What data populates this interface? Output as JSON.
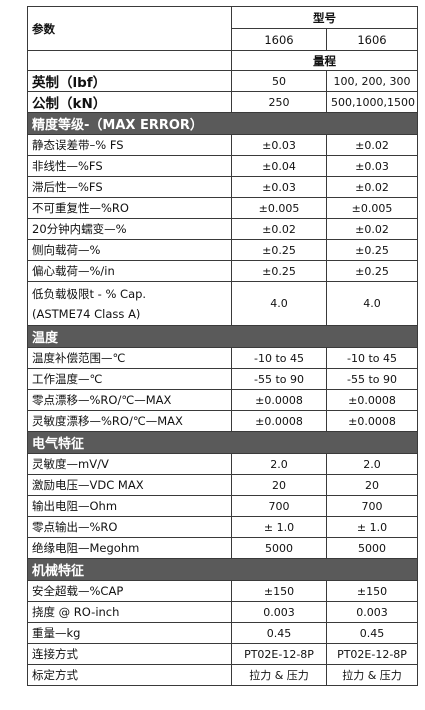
{
  "header": {
    "param_label": "参数",
    "model_label": "型号",
    "model_a": "1606",
    "model_b": "1606",
    "range_label": "量程"
  },
  "capacity": [
    {
      "label": "英制（lbf）",
      "a": "50",
      "b": "100, 200, 300"
    },
    {
      "label": "公制（kN）",
      "a": "250",
      "b": "500,1000,1500"
    }
  ],
  "sections": {
    "accuracy": "精度等级-（MAX ERROR）",
    "temperature": "温度",
    "electrical": "电气特征",
    "mechanical": "机械特征"
  },
  "accuracy_rows": [
    {
      "label": "静态误差带–% FS",
      "a": "±0.03",
      "b": "±0.02"
    },
    {
      "label": "非线性—%FS",
      "a": "±0.04",
      "b": "±0.03"
    },
    {
      "label": "滞后性—%FS",
      "a": "±0.03",
      "b": "±0.02"
    },
    {
      "label": "不可重复性—%RO",
      "a": "±0.005",
      "b": "±0.005"
    },
    {
      "label": "20分钟内蠕变—%",
      "a": "±0.02",
      "b": "±0.02"
    },
    {
      "label": "侧向载荷—%",
      "a": "±0.25",
      "b": "±0.25"
    },
    {
      "label": "偏心载荷—%/in",
      "a": "±0.25",
      "b": "±0.25"
    }
  ],
  "low_load": {
    "label_line1": "低负载极限t - % Cap.",
    "label_line2": "(ASTME74 Class A)",
    "a": "4.0",
    "b": "4.0"
  },
  "temperature_rows": [
    {
      "label": "温度补偿范围—℃",
      "a": "-10 to 45",
      "b": "-10 to 45"
    },
    {
      "label": "工作温度—℃",
      "a": "-55 to 90",
      "b": "-55 to 90"
    },
    {
      "label": "零点漂移—%RO/℃—MAX",
      "a": "±0.0008",
      "b": "±0.0008"
    },
    {
      "label": "灵敏度漂移—%RO/℃—MAX",
      "a": "±0.0008",
      "b": "±0.0008"
    }
  ],
  "electrical_rows": [
    {
      "label": "灵敏度—mV/V",
      "a": "2.0",
      "b": "2.0"
    },
    {
      "label": "激励电压—VDC MAX",
      "a": "20",
      "b": "20"
    },
    {
      "label": "输出电阻—Ohm",
      "a": "700",
      "b": "700"
    },
    {
      "label": "零点输出—%RO",
      "a": "± 1.0",
      "b": "± 1.0"
    },
    {
      "label": "绝缘电阻—Megohm",
      "a": "5000",
      "b": "5000"
    }
  ],
  "mechanical_rows": [
    {
      "label": "安全超载—%CAP",
      "a": "±150",
      "b": "±150"
    },
    {
      "label": "挠度 @ RO-inch",
      "a": "0.003",
      "b": "0.003"
    },
    {
      "label": "重量—kg",
      "a": "0.45",
      "b": "0.45"
    },
    {
      "label": "连接方式",
      "a": "PT02E-12-8P",
      "b": "PT02E-12-8P"
    },
    {
      "label": "标定方式",
      "a": "拉力 & 压力",
      "b": "拉力 & 压力"
    }
  ]
}
